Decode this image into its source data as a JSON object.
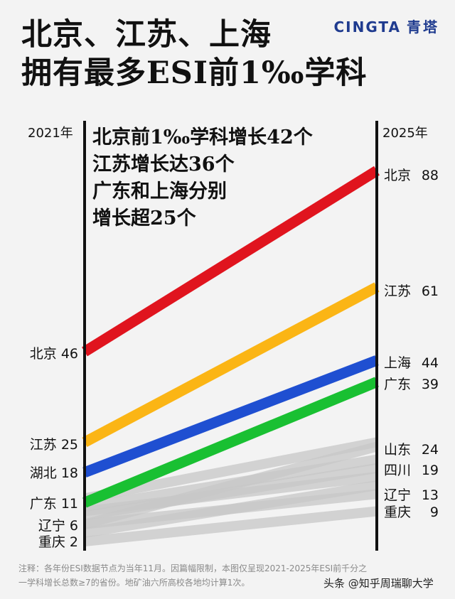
{
  "title_lines": [
    "北京、江苏、上海",
    "拥有最多ESI前1‰学科"
  ],
  "brand": {
    "latin": "CINGTA",
    "cn": "青塔"
  },
  "annotation_lines": [
    "北京前1‰学科增长42个",
    "江苏增长达36个",
    "广东和上海分别",
    "增长超25个"
  ],
  "note_lines": [
    "注释：各年份ESI数据节点为当年11月。因篇幅限制，本图仅呈现2021-2025年ESI前千分之",
    "一学科增长总数≥7的省份。地矿油六所高校各地均计算1次。"
  ],
  "credit": "头条 @知乎周瑞聊大学",
  "chart_data": {
    "type": "line",
    "x": [
      "2021年",
      "2025年"
    ],
    "highlighted": [
      {
        "name": "北京",
        "values": [
          46,
          88
        ],
        "color": "#e0141e"
      },
      {
        "name": "江苏",
        "values": [
          25,
          61
        ],
        "color": "#fbb515"
      },
      {
        "name": "上海",
        "values": [
          18,
          44
        ],
        "color": "#1f4fd1"
      },
      {
        "name": "广东",
        "values": [
          11,
          39
        ],
        "color": "#19c032"
      }
    ],
    "background_series_color": "#c8c8c8",
    "left_labels": [
      {
        "name": "北京",
        "value": 46
      },
      {
        "name": "江苏",
        "value": 25
      },
      {
        "name": "湖北",
        "value": 18
      },
      {
        "name": "广东",
        "value": 11
      },
      {
        "name": "辽宁",
        "value": 6
      },
      {
        "name": "重庆",
        "value": 2
      }
    ],
    "right_labels": [
      {
        "name": "北京",
        "value": 88
      },
      {
        "name": "江苏",
        "value": 61
      },
      {
        "name": "上海",
        "value": 44
      },
      {
        "name": "广东",
        "value": 39
      },
      {
        "name": "山东",
        "value": 24
      },
      {
        "name": "四川",
        "value": 19
      },
      {
        "name": "辽宁",
        "value": 13
      },
      {
        "name": "重庆",
        "value": 9
      }
    ],
    "background_series": [
      {
        "values": [
          6,
          24
        ]
      },
      {
        "values": [
          10,
          21
        ]
      },
      {
        "values": [
          8,
          19
        ]
      },
      {
        "values": [
          9,
          17
        ]
      },
      {
        "values": [
          6,
          13
        ]
      },
      {
        "values": [
          2,
          9
        ]
      },
      {
        "values": [
          12,
          25
        ]
      },
      {
        "values": [
          4,
          15
        ]
      }
    ],
    "ylim": [
      0,
      92
    ]
  }
}
